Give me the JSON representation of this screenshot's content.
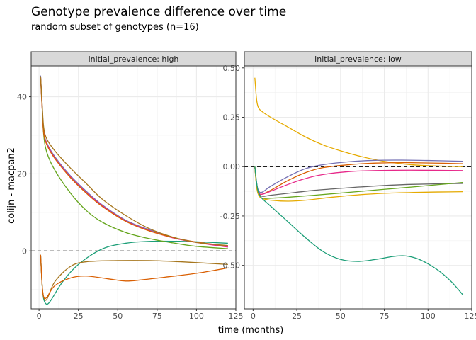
{
  "chart_data": {
    "type": "line",
    "title": "Genotype prevalence difference over time",
    "subtitle": "random subset of genotypes (n=16)",
    "xlabel": "time (months)",
    "ylabel": "colijn - macpan2",
    "reference_line": {
      "y": 0,
      "style": "dashed"
    },
    "panels": [
      {
        "strip": "initial_prevalence: high",
        "xlim": [
          -5,
          125
        ],
        "ylim": [
          -15,
          48
        ],
        "x_ticks": [
          0,
          25,
          50,
          75,
          100,
          125
        ],
        "y_ticks": [
          0,
          20,
          40
        ],
        "series": [
          {
            "color": "#1b9e77",
            "points": [
              [
                1,
                -1
              ],
              [
                2,
                -9
              ],
              [
                3,
                -12.5
              ],
              [
                5,
                -13.8
              ],
              [
                8,
                -12.5
              ],
              [
                15,
                -8
              ],
              [
                25,
                -3.5
              ],
              [
                40,
                0.5
              ],
              [
                55,
                2
              ],
              [
                70,
                2.5
              ],
              [
                90,
                2.5
              ],
              [
                105,
                2.3
              ],
              [
                120,
                2.0
              ]
            ]
          },
          {
            "color": "#a6761d",
            "points": [
              [
                1,
                -1
              ],
              [
                2,
                -9
              ],
              [
                3,
                -12
              ],
              [
                5,
                -12.5
              ],
              [
                10,
                -8
              ],
              [
                20,
                -4
              ],
              [
                30,
                -2.8
              ],
              [
                50,
                -2.5
              ],
              [
                70,
                -2.5
              ],
              [
                90,
                -2.8
              ],
              [
                120,
                -3.5
              ]
            ]
          },
          {
            "color": "#d95f02",
            "points": [
              [
                1,
                -1
              ],
              [
                2,
                -9
              ],
              [
                3,
                -12
              ],
              [
                5,
                -12
              ],
              [
                10,
                -9
              ],
              [
                20,
                -7
              ],
              [
                30,
                -6.5
              ],
              [
                45,
                -7.3
              ],
              [
                55,
                -7.8
              ],
              [
                65,
                -7.5
              ],
              [
                80,
                -6.8
              ],
              [
                100,
                -5.8
              ],
              [
                120,
                -4.4
              ]
            ]
          },
          {
            "color": "#66a61e",
            "points": [
              [
                1,
                45
              ],
              [
                2,
                37
              ],
              [
                3,
                30
              ],
              [
                5,
                25.5
              ],
              [
                10,
                21
              ],
              [
                20,
                15
              ],
              [
                30,
                10.5
              ],
              [
                40,
                7.5
              ],
              [
                55,
                4.8
              ],
              [
                70,
                3.2
              ],
              [
                85,
                2.1
              ],
              [
                100,
                1.2
              ],
              [
                120,
                0.6
              ]
            ]
          },
          {
            "color": "#7570b3",
            "points": [
              [
                1,
                45.5
              ],
              [
                2,
                37.5
              ],
              [
                3,
                31
              ],
              [
                5,
                28
              ],
              [
                10,
                24.5
              ],
              [
                20,
                19.5
              ],
              [
                30,
                15.5
              ],
              [
                40,
                12
              ],
              [
                55,
                8
              ],
              [
                70,
                5.5
              ],
              [
                85,
                3.5
              ],
              [
                100,
                2.3
              ],
              [
                120,
                1.1
              ]
            ]
          },
          {
            "color": "#e7298a",
            "points": [
              [
                1,
                45.2
              ],
              [
                2,
                37
              ],
              [
                3,
                30.8
              ],
              [
                5,
                27.8
              ],
              [
                10,
                24.2
              ],
              [
                20,
                19.2
              ],
              [
                30,
                15.2
              ],
              [
                40,
                11.8
              ],
              [
                55,
                7.8
              ],
              [
                70,
                5.3
              ],
              [
                85,
                3.4
              ],
              [
                100,
                2.2
              ],
              [
                120,
                1.0
              ]
            ]
          },
          {
            "color": "#d95f02",
            "points": [
              [
                1,
                45
              ],
              [
                2,
                37
              ],
              [
                3,
                30.5
              ],
              [
                5,
                27.5
              ],
              [
                10,
                24
              ],
              [
                20,
                19
              ],
              [
                30,
                15
              ],
              [
                40,
                11.6
              ],
              [
                55,
                7.7
              ],
              [
                70,
                5.2
              ],
              [
                85,
                3.5
              ],
              [
                100,
                2.3
              ],
              [
                120,
                1.3
              ]
            ]
          },
          {
            "color": "#a6761d",
            "points": [
              [
                1,
                45.3
              ],
              [
                2,
                38
              ],
              [
                3,
                32
              ],
              [
                5,
                29
              ],
              [
                10,
                26
              ],
              [
                20,
                21.5
              ],
              [
                30,
                17.5
              ],
              [
                40,
                13.5
              ],
              [
                55,
                9.2
              ],
              [
                70,
                5.8
              ],
              [
                85,
                3.6
              ],
              [
                100,
                2.2
              ],
              [
                120,
                1.4
              ]
            ]
          }
        ]
      },
      {
        "strip": "initial_prevalence: low",
        "xlim": [
          -5,
          125
        ],
        "ylim": [
          -0.72,
          0.51
        ],
        "x_ticks": [
          0,
          25,
          50,
          75,
          100,
          125
        ],
        "y_ticks": [
          -0.5,
          -0.25,
          0.0,
          0.25,
          0.5
        ],
        "y_tick_labels": [
          "-0.50",
          "-0.25",
          "0.00",
          "0.25",
          "0.50"
        ],
        "series": [
          {
            "color": "#e6ab02",
            "points": [
              [
                1,
                0.45
              ],
              [
                2,
                0.34
              ],
              [
                3,
                0.3
              ],
              [
                5,
                0.28
              ],
              [
                10,
                0.25
              ],
              [
                20,
                0.2
              ],
              [
                30,
                0.15
              ],
              [
                40,
                0.11
              ],
              [
                50,
                0.08
              ],
              [
                60,
                0.055
              ],
              [
                70,
                0.035
              ],
              [
                80,
                0.02
              ],
              [
                90,
                0.01
              ],
              [
                100,
                0.005
              ],
              [
                110,
                0.002
              ],
              [
                120,
                0.0
              ]
            ]
          },
          {
            "color": "#7570b3",
            "points": [
              [
                1,
                0
              ],
              [
                2,
                -0.08
              ],
              [
                3,
                -0.12
              ],
              [
                5,
                -0.13
              ],
              [
                10,
                -0.1
              ],
              [
                20,
                -0.05
              ],
              [
                30,
                -0.01
              ],
              [
                40,
                0.01
              ],
              [
                55,
                0.025
              ],
              [
                70,
                0.032
              ],
              [
                85,
                0.033
              ],
              [
                100,
                0.031
              ],
              [
                120,
                0.027
              ]
            ]
          },
          {
            "color": "#d95f02",
            "points": [
              [
                1,
                0
              ],
              [
                2,
                -0.09
              ],
              [
                3,
                -0.13
              ],
              [
                5,
                -0.14
              ],
              [
                10,
                -0.12
              ],
              [
                20,
                -0.07
              ],
              [
                30,
                -0.03
              ],
              [
                40,
                -0.005
              ],
              [
                55,
                0.01
              ],
              [
                70,
                0.018
              ],
              [
                90,
                0.02
              ],
              [
                120,
                0.015
              ]
            ]
          },
          {
            "color": "#e7298a",
            "points": [
              [
                1,
                0
              ],
              [
                2,
                -0.09
              ],
              [
                3,
                -0.13
              ],
              [
                5,
                -0.14
              ],
              [
                10,
                -0.125
              ],
              [
                20,
                -0.09
              ],
              [
                30,
                -0.06
              ],
              [
                40,
                -0.04
              ],
              [
                55,
                -0.025
              ],
              [
                70,
                -0.02
              ],
              [
                90,
                -0.018
              ],
              [
                120,
                -0.02
              ]
            ]
          },
          {
            "color": "#666666",
            "points": [
              [
                1,
                0
              ],
              [
                2,
                -0.09
              ],
              [
                3,
                -0.13
              ],
              [
                5,
                -0.15
              ],
              [
                10,
                -0.145
              ],
              [
                20,
                -0.135
              ],
              [
                35,
                -0.12
              ],
              [
                50,
                -0.11
              ],
              [
                70,
                -0.098
              ],
              [
                90,
                -0.09
              ],
              [
                120,
                -0.085
              ]
            ]
          },
          {
            "color": "#66a61e",
            "points": [
              [
                1,
                0
              ],
              [
                2,
                -0.1
              ],
              [
                3,
                -0.14
              ],
              [
                5,
                -0.16
              ],
              [
                10,
                -0.16
              ],
              [
                20,
                -0.155
              ],
              [
                35,
                -0.145
              ],
              [
                55,
                -0.13
              ],
              [
                75,
                -0.115
              ],
              [
                95,
                -0.1
              ],
              [
                120,
                -0.08
              ]
            ]
          },
          {
            "color": "#e6ab02",
            "points": [
              [
                1,
                0
              ],
              [
                2,
                -0.1
              ],
              [
                3,
                -0.14
              ],
              [
                5,
                -0.16
              ],
              [
                10,
                -0.17
              ],
              [
                20,
                -0.175
              ],
              [
                30,
                -0.17
              ],
              [
                45,
                -0.155
              ],
              [
                60,
                -0.143
              ],
              [
                75,
                -0.135
              ],
              [
                95,
                -0.13
              ],
              [
                120,
                -0.127
              ]
            ]
          },
          {
            "color": "#1b9e77",
            "points": [
              [
                1,
                0
              ],
              [
                2,
                -0.08
              ],
              [
                3,
                -0.13
              ],
              [
                5,
                -0.16
              ],
              [
                10,
                -0.2
              ],
              [
                20,
                -0.28
              ],
              [
                30,
                -0.36
              ],
              [
                40,
                -0.43
              ],
              [
                50,
                -0.47
              ],
              [
                60,
                -0.48
              ],
              [
                70,
                -0.47
              ],
              [
                80,
                -0.455
              ],
              [
                87,
                -0.452
              ],
              [
                95,
                -0.47
              ],
              [
                105,
                -0.52
              ],
              [
                113,
                -0.58
              ],
              [
                120,
                -0.65
              ]
            ]
          }
        ]
      }
    ]
  }
}
